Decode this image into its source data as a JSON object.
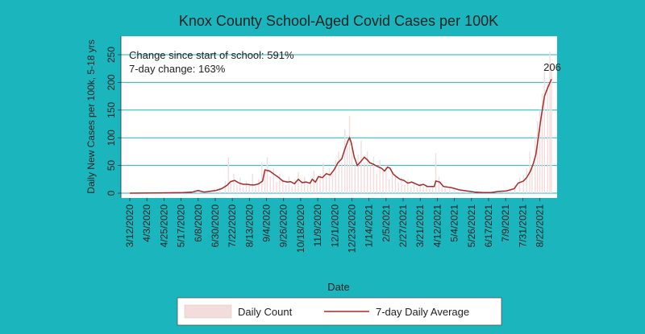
{
  "colors": {
    "background": "#1bb6bd",
    "plot_background": "#ffffff",
    "gridline": "#1bb6bd",
    "daily_fill": "#f3dcdc",
    "average_line": "#a52a2a",
    "text": "#222222"
  },
  "chart_data": {
    "type": "bar",
    "title": "Knox County School-Aged Covid Cases per 100K",
    "xlabel": "Date",
    "ylabel": "Daily New Cases per 100k, 5-18 yrs",
    "ylim": [
      0,
      250
    ],
    "yticks": [
      0,
      50,
      100,
      150,
      200,
      250
    ],
    "xlim": [
      "2020-03-12",
      "2021-09-06"
    ],
    "xticks": [
      "3/12/2020",
      "4/3/2020",
      "4/25/2020",
      "5/17/2020",
      "6/8/2020",
      "6/30/2020",
      "7/22/2020",
      "8/13/2020",
      "9/4/2020",
      "9/26/2020",
      "10/18/2020",
      "11/9/2020",
      "12/1/2020",
      "12/23/2020",
      "1/14/2021",
      "2/5/2021",
      "2/27/2021",
      "3/21/2021",
      "4/12/2021",
      "5/4/2021",
      "5/26/2021",
      "6/17/2021",
      "7/9/2021",
      "7/31/2021",
      "8/22/2021"
    ],
    "grid": true,
    "legend_position": "bottom",
    "annotations": [
      "Change since start of school: 591%",
      "7-day change: 163%"
    ],
    "end_label": "206",
    "series": [
      {
        "name": "Daily Count",
        "type": "bar",
        "values": [
          [
            "2020-03-12",
            0
          ],
          [
            "2020-03-26",
            1
          ],
          [
            "2020-04-09",
            0
          ],
          [
            "2020-04-23",
            1
          ],
          [
            "2020-05-07",
            0
          ],
          [
            "2020-05-21",
            2
          ],
          [
            "2020-06-01",
            3
          ],
          [
            "2020-06-08",
            6
          ],
          [
            "2020-06-15",
            2
          ],
          [
            "2020-06-22",
            5
          ],
          [
            "2020-06-29",
            8
          ],
          [
            "2020-07-06",
            10
          ],
          [
            "2020-07-13",
            22
          ],
          [
            "2020-07-17",
            65
          ],
          [
            "2020-07-20",
            18
          ],
          [
            "2020-07-24",
            35
          ],
          [
            "2020-07-28",
            14
          ],
          [
            "2020-08-01",
            28
          ],
          [
            "2020-08-05",
            12
          ],
          [
            "2020-08-09",
            22
          ],
          [
            "2020-08-13",
            16
          ],
          [
            "2020-08-17",
            35
          ],
          [
            "2020-08-21",
            12
          ],
          [
            "2020-08-25",
            25
          ],
          [
            "2020-08-29",
            55
          ],
          [
            "2020-09-02",
            40
          ],
          [
            "2020-09-05",
            65
          ],
          [
            "2020-09-09",
            30
          ],
          [
            "2020-09-13",
            45
          ],
          [
            "2020-09-17",
            20
          ],
          [
            "2020-09-21",
            35
          ],
          [
            "2020-09-25",
            25
          ],
          [
            "2020-09-29",
            15
          ],
          [
            "2020-10-03",
            30
          ],
          [
            "2020-10-07",
            12
          ],
          [
            "2020-10-11",
            25
          ],
          [
            "2020-10-15",
            38
          ],
          [
            "2020-10-19",
            20
          ],
          [
            "2020-10-23",
            30
          ],
          [
            "2020-10-27",
            15
          ],
          [
            "2020-10-31",
            22
          ],
          [
            "2020-11-04",
            40
          ],
          [
            "2020-11-08",
            28
          ],
          [
            "2020-11-12",
            35
          ],
          [
            "2020-11-16",
            55
          ],
          [
            "2020-11-20",
            30
          ],
          [
            "2020-11-24",
            45
          ],
          [
            "2020-11-28",
            35
          ],
          [
            "2020-12-02",
            60
          ],
          [
            "2020-12-06",
            75
          ],
          [
            "2020-12-10",
            55
          ],
          [
            "2020-12-14",
            115
          ],
          [
            "2020-12-17",
            85
          ],
          [
            "2020-12-20",
            140
          ],
          [
            "2020-12-23",
            90
          ],
          [
            "2020-12-27",
            50
          ],
          [
            "2020-12-31",
            70
          ],
          [
            "2021-01-04",
            95
          ],
          [
            "2021-01-08",
            55
          ],
          [
            "2021-01-12",
            75
          ],
          [
            "2021-01-16",
            50
          ],
          [
            "2021-01-20",
            65
          ],
          [
            "2021-01-24",
            35
          ],
          [
            "2021-01-28",
            60
          ],
          [
            "2021-02-01",
            40
          ],
          [
            "2021-02-05",
            50
          ],
          [
            "2021-02-09",
            25
          ],
          [
            "2021-02-13",
            40
          ],
          [
            "2021-02-17",
            30
          ],
          [
            "2021-02-21",
            20
          ],
          [
            "2021-02-25",
            28
          ],
          [
            "2021-03-01",
            15
          ],
          [
            "2021-03-05",
            25
          ],
          [
            "2021-03-09",
            12
          ],
          [
            "2021-03-13",
            20
          ],
          [
            "2021-03-17",
            10
          ],
          [
            "2021-03-21",
            18
          ],
          [
            "2021-03-25",
            12
          ],
          [
            "2021-03-29",
            15
          ],
          [
            "2021-04-02",
            8
          ],
          [
            "2021-04-06",
            12
          ],
          [
            "2021-04-10",
            72
          ],
          [
            "2021-04-14",
            30
          ],
          [
            "2021-04-18",
            15
          ],
          [
            "2021-04-22",
            10
          ],
          [
            "2021-04-28",
            8
          ],
          [
            "2021-05-04",
            6
          ],
          [
            "2021-05-12",
            4
          ],
          [
            "2021-05-20",
            3
          ],
          [
            "2021-05-28",
            2
          ],
          [
            "2021-06-05",
            2
          ],
          [
            "2021-06-13",
            1
          ],
          [
            "2021-06-21",
            2
          ],
          [
            "2021-06-29",
            3
          ],
          [
            "2021-07-07",
            5
          ],
          [
            "2021-07-15",
            8
          ],
          [
            "2021-07-21",
            15
          ],
          [
            "2021-07-27",
            28
          ],
          [
            "2021-08-01",
            32
          ],
          [
            "2021-08-05",
            45
          ],
          [
            "2021-08-09",
            75
          ],
          [
            "2021-08-12",
            50
          ],
          [
            "2021-08-16",
            100
          ],
          [
            "2021-08-19",
            130
          ],
          [
            "2021-08-22",
            150
          ],
          [
            "2021-08-25",
            180
          ],
          [
            "2021-08-28",
            220
          ],
          [
            "2021-09-01",
            200
          ],
          [
            "2021-09-04",
            255
          ],
          [
            "2021-09-06",
            230
          ]
        ]
      },
      {
        "name": "7-day Daily Average",
        "type": "line",
        "points": [
          [
            "2020-03-12",
            0
          ],
          [
            "2020-04-15",
            0.5
          ],
          [
            "2020-05-20",
            1
          ],
          [
            "2020-06-01",
            2
          ],
          [
            "2020-06-08",
            5
          ],
          [
            "2020-06-15",
            2
          ],
          [
            "2020-06-22",
            3
          ],
          [
            "2020-07-01",
            5
          ],
          [
            "2020-07-08",
            8
          ],
          [
            "2020-07-15",
            14
          ],
          [
            "2020-07-20",
            21
          ],
          [
            "2020-07-25",
            23
          ],
          [
            "2020-07-31",
            18
          ],
          [
            "2020-08-05",
            16
          ],
          [
            "2020-08-10",
            16
          ],
          [
            "2020-08-15",
            15
          ],
          [
            "2020-08-20",
            15
          ],
          [
            "2020-08-25",
            17
          ],
          [
            "2020-08-30",
            22
          ],
          [
            "2020-09-02",
            42
          ],
          [
            "2020-09-08",
            40
          ],
          [
            "2020-09-15",
            33
          ],
          [
            "2020-09-20",
            28
          ],
          [
            "2020-09-25",
            22
          ],
          [
            "2020-10-01",
            20
          ],
          [
            "2020-10-05",
            21
          ],
          [
            "2020-10-10",
            17
          ],
          [
            "2020-10-15",
            25
          ],
          [
            "2020-10-20",
            19
          ],
          [
            "2020-10-25",
            20
          ],
          [
            "2020-10-30",
            18
          ],
          [
            "2020-11-02",
            25
          ],
          [
            "2020-11-06",
            20
          ],
          [
            "2020-11-10",
            30
          ],
          [
            "2020-11-15",
            28
          ],
          [
            "2020-11-20",
            35
          ],
          [
            "2020-11-25",
            33
          ],
          [
            "2020-11-30",
            42
          ],
          [
            "2020-12-05",
            55
          ],
          [
            "2020-12-10",
            62
          ],
          [
            "2020-12-14",
            80
          ],
          [
            "2020-12-18",
            95
          ],
          [
            "2020-12-20",
            100
          ],
          [
            "2020-12-22",
            92
          ],
          [
            "2020-12-26",
            65
          ],
          [
            "2020-12-30",
            50
          ],
          [
            "2021-01-04",
            58
          ],
          [
            "2021-01-08",
            65
          ],
          [
            "2021-01-12",
            60
          ],
          [
            "2021-01-15",
            55
          ],
          [
            "2021-01-20",
            52
          ],
          [
            "2021-01-25",
            48
          ],
          [
            "2021-01-30",
            45
          ],
          [
            "2021-02-03",
            40
          ],
          [
            "2021-02-07",
            47
          ],
          [
            "2021-02-10",
            45
          ],
          [
            "2021-02-14",
            35
          ],
          [
            "2021-02-18",
            30
          ],
          [
            "2021-02-23",
            25
          ],
          [
            "2021-02-28",
            23
          ],
          [
            "2021-03-05",
            18
          ],
          [
            "2021-03-10",
            20
          ],
          [
            "2021-03-15",
            17
          ],
          [
            "2021-03-20",
            14
          ],
          [
            "2021-03-25",
            16
          ],
          [
            "2021-03-30",
            12
          ],
          [
            "2021-04-05",
            12
          ],
          [
            "2021-04-08",
            12
          ],
          [
            "2021-04-10",
            22
          ],
          [
            "2021-04-15",
            20
          ],
          [
            "2021-04-20",
            12
          ],
          [
            "2021-04-30",
            10
          ],
          [
            "2021-05-10",
            6
          ],
          [
            "2021-05-20",
            4
          ],
          [
            "2021-05-30",
            2
          ],
          [
            "2021-06-10",
            1
          ],
          [
            "2021-06-20",
            1
          ],
          [
            "2021-06-30",
            3
          ],
          [
            "2021-07-10",
            4
          ],
          [
            "2021-07-20",
            8
          ],
          [
            "2021-07-25",
            18
          ],
          [
            "2021-08-01",
            22
          ],
          [
            "2021-08-05",
            28
          ],
          [
            "2021-08-10",
            40
          ],
          [
            "2021-08-14",
            55
          ],
          [
            "2021-08-17",
            70
          ],
          [
            "2021-08-20",
            100
          ],
          [
            "2021-08-24",
            140
          ],
          [
            "2021-08-28",
            175
          ],
          [
            "2021-09-01",
            190
          ],
          [
            "2021-09-06",
            206
          ]
        ]
      }
    ]
  }
}
